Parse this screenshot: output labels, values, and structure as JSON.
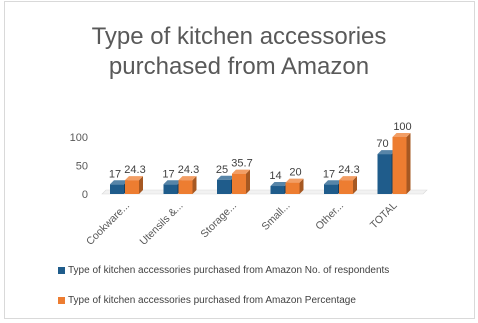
{
  "chart_data": {
    "type": "bar",
    "title_line1": "Type of kitchen accessories",
    "title_line2": "purchased from Amazon",
    "categories": [
      "Cookware...",
      "Utensils &...",
      "Storage...",
      "Small...",
      "Other...",
      "TOTAL"
    ],
    "series": [
      {
        "name": "Type of kitchen accessories purchased from Amazon No. of respondents",
        "values": [
          17,
          17,
          25,
          14,
          17,
          70
        ],
        "color": "#1f5c8b"
      },
      {
        "name": "Type of kitchen accessories purchased from Amazon Percentage",
        "values": [
          24.3,
          24.3,
          35.7,
          20,
          24.3,
          100
        ],
        "color": "#ed7d31"
      }
    ],
    "y_ticks": [
      "0",
      "50",
      "100"
    ],
    "ylim": [
      0,
      100
    ],
    "grid": false,
    "style": "3d-clustered-column",
    "legend_position": "bottom"
  }
}
